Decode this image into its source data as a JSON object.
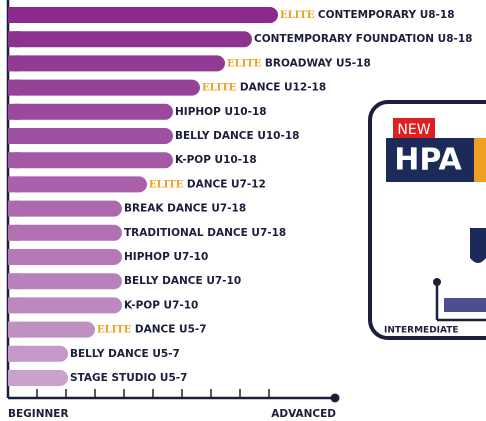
{
  "rows": [
    {
      "elite": "ELITE",
      "label": "CONTEMPORARY U8-18"
    },
    {
      "label": "CONTEMPORARY FOUNDATION U8-18"
    },
    {
      "elite": "ELITE",
      "label": "BROADWAY U5-18"
    },
    {
      "elite": "ELITE",
      "label": "DANCE U12-18"
    },
    {
      "label": "HIPHOP U10-18"
    },
    {
      "label": "BELLY DANCE U10-18"
    },
    {
      "label": "K-POP U10-18"
    },
    {
      "elite": "ELITE",
      "label": "DANCE U7-12"
    },
    {
      "label": "BREAK DANCE U7-18"
    },
    {
      "label": "TRADITIONAL DANCE U7-18"
    },
    {
      "label": "HIPHOP U7-10"
    },
    {
      "label": "BELLY DANCE U7-10"
    },
    {
      "label": "K-POP U7-10"
    },
    {
      "elite": "ELITE",
      "label": "DANCE U5-7"
    },
    {
      "label": "BELLY DANCE U5-7"
    },
    {
      "label": "STAGE STUDIO U5-7"
    }
  ],
  "axis": {
    "start": "BEGINNER",
    "end": "ADVANCED"
  },
  "card": {
    "badge": "NEW",
    "logo": "HPA",
    "level": "INTERMEDIATE"
  }
}
